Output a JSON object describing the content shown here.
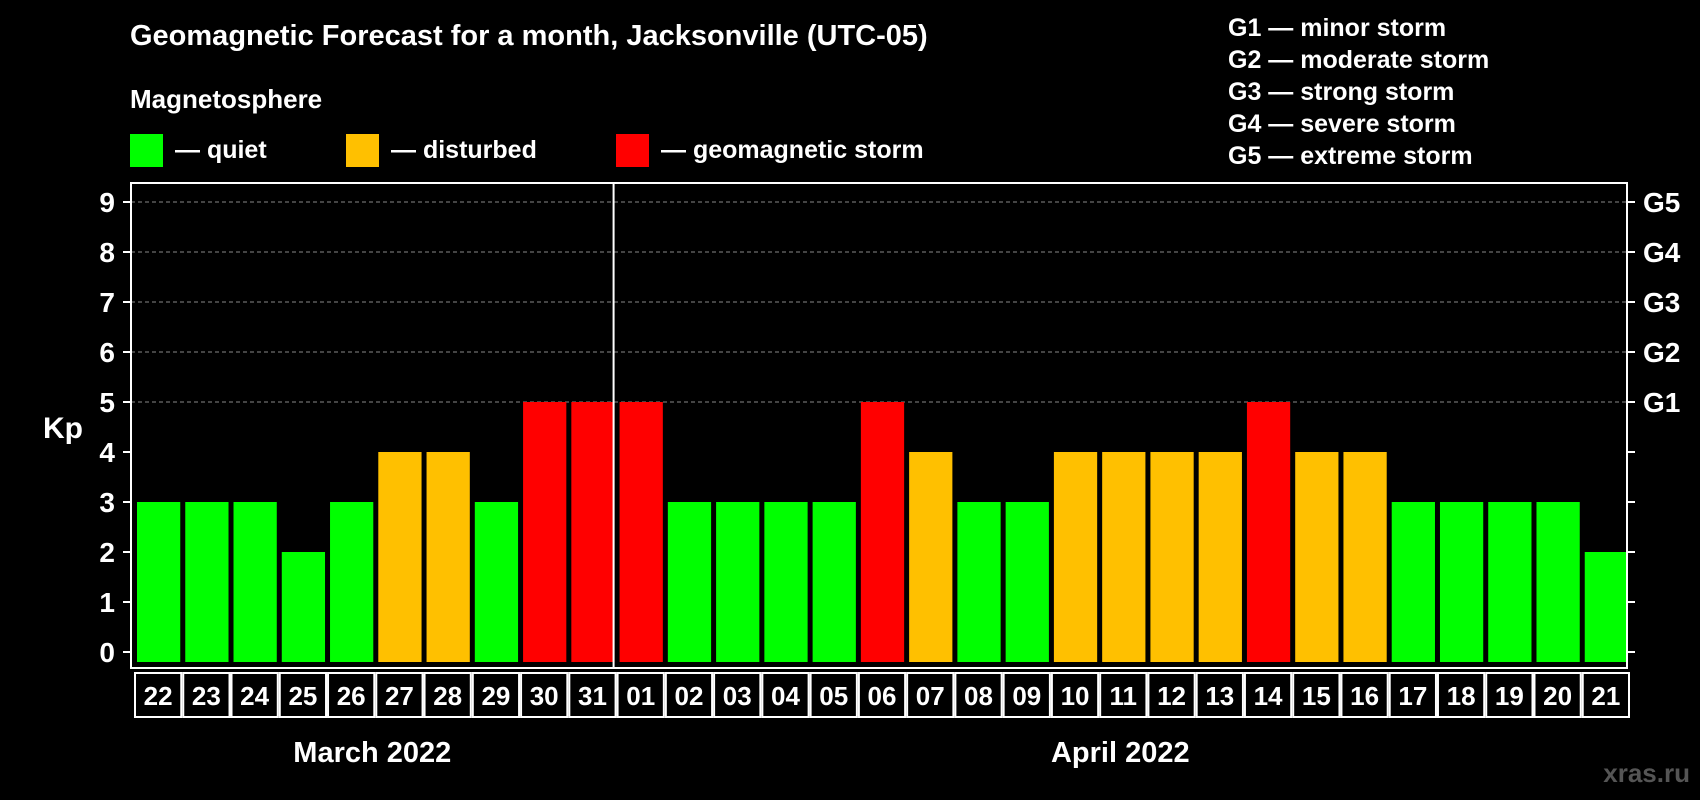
{
  "header": {
    "title": "Geomagnetic Forecast for a month, Jacksonville (UTC-05)",
    "subtitle": "Magnetosphere"
  },
  "legend": [
    {
      "label": "— quiet",
      "color": "#00ff00"
    },
    {
      "label": "— disturbed",
      "color": "#ffc000"
    },
    {
      "label": "— geomagnetic storm",
      "color": "#ff0000"
    }
  ],
  "g_scale": [
    "G1 — minor storm",
    "G2 — moderate storm",
    "G3 — strong storm",
    "G4 — severe storm",
    "G5 — extreme storm"
  ],
  "months": [
    "March 2022",
    "April 2022"
  ],
  "watermark": "xras.ru",
  "chart_data": {
    "type": "bar",
    "ylabel": "Kp",
    "ylim": [
      0,
      9
    ],
    "yticks": [
      "0",
      "1",
      "2",
      "3",
      "4",
      "5",
      "6",
      "7",
      "8",
      "9"
    ],
    "right_ticks": [
      {
        "kp": 5,
        "label": "G1"
      },
      {
        "kp": 6,
        "label": "G2"
      },
      {
        "kp": 7,
        "label": "G3"
      },
      {
        "kp": 8,
        "label": "G4"
      },
      {
        "kp": 9,
        "label": "G5"
      }
    ],
    "grid": "horizontal dashed at Kp 5-9",
    "categories": [
      "22",
      "23",
      "24",
      "25",
      "26",
      "27",
      "28",
      "29",
      "30",
      "31",
      "01",
      "02",
      "03",
      "04",
      "05",
      "06",
      "07",
      "08",
      "09",
      "10",
      "11",
      "12",
      "13",
      "14",
      "15",
      "16",
      "17",
      "18",
      "19",
      "20",
      "21"
    ],
    "values": [
      3,
      3,
      3,
      2,
      3,
      4,
      4,
      3,
      5,
      5,
      5,
      3,
      3,
      3,
      3,
      5,
      4,
      3,
      3,
      4,
      4,
      4,
      4,
      5,
      4,
      4,
      3,
      3,
      3,
      3,
      2
    ],
    "color_by_level": {
      "quiet": "#00ff00",
      "disturbed": "#ffc000",
      "storm": "#ff0000"
    },
    "month_split_after_index": 9
  }
}
